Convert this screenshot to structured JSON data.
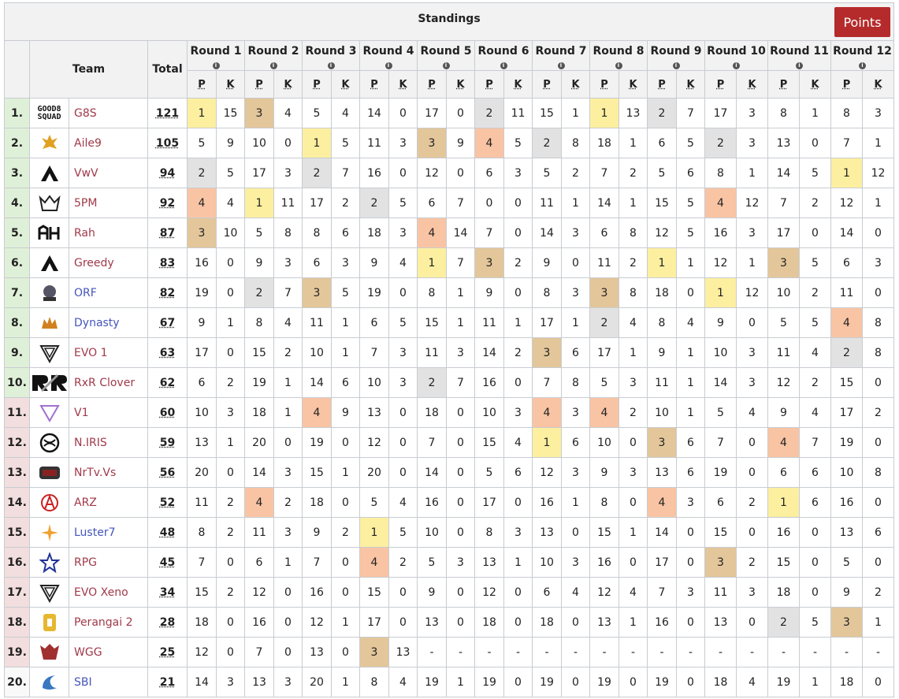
{
  "title": "Standings",
  "points_button": "Points",
  "header": {
    "team": "Team",
    "total": "Total",
    "p": "P",
    "k": "K",
    "info_glyph": "i"
  },
  "rounds": [
    "Round 1",
    "Round 2",
    "Round 3",
    "Round 4",
    "Round 5",
    "Round 6",
    "Round 7",
    "Round 8",
    "Round 9",
    "Round 10",
    "Round 11",
    "Round 12"
  ],
  "colors": {
    "gold": "#fcefa0",
    "silver": "#e2e2e2",
    "bronze": "#e3c69a",
    "fourth": "#f9c4a4",
    "top_rank": "#dff0d8",
    "bottom_rank": "#f2dede",
    "points_button": "#b52b2b"
  },
  "rows": [
    {
      "rank": "1.",
      "team": "G8S",
      "logo": "good8-squad-logo",
      "logo_text": "GOOD8 SQUAD",
      "link": "red",
      "total": "121",
      "tier": "top",
      "r": [
        [
          "1",
          "15",
          "g1"
        ],
        [
          "3",
          "4",
          "g3"
        ],
        [
          "5",
          "4",
          ""
        ],
        [
          "14",
          "0",
          ""
        ],
        [
          "17",
          "0",
          ""
        ],
        [
          "2",
          "11",
          "g2"
        ],
        [
          "15",
          "1",
          ""
        ],
        [
          "1",
          "13",
          "g1"
        ],
        [
          "2",
          "7",
          "g2"
        ],
        [
          "17",
          "3",
          ""
        ],
        [
          "8",
          "1",
          ""
        ],
        [
          "8",
          "3",
          ""
        ]
      ]
    },
    {
      "rank": "2.",
      "team": "Aile9",
      "logo": "aile9-logo",
      "link": "red",
      "total": "105",
      "tier": "top",
      "r": [
        [
          "5",
          "9",
          ""
        ],
        [
          "10",
          "0",
          ""
        ],
        [
          "1",
          "5",
          "g1"
        ],
        [
          "11",
          "3",
          ""
        ],
        [
          "3",
          "9",
          "g3"
        ],
        [
          "4",
          "5",
          "gp"
        ],
        [
          "2",
          "8",
          "g2"
        ],
        [
          "18",
          "1",
          ""
        ],
        [
          "6",
          "5",
          ""
        ],
        [
          "2",
          "3",
          "g2"
        ],
        [
          "13",
          "0",
          ""
        ],
        [
          "7",
          "1",
          ""
        ]
      ]
    },
    {
      "rank": "3.",
      "team": "VwV",
      "logo": "vwv-logo",
      "link": "red",
      "total": "94",
      "tier": "top",
      "r": [
        [
          "2",
          "5",
          "g2"
        ],
        [
          "17",
          "3",
          ""
        ],
        [
          "2",
          "7",
          "g2"
        ],
        [
          "16",
          "0",
          ""
        ],
        [
          "12",
          "0",
          ""
        ],
        [
          "6",
          "3",
          ""
        ],
        [
          "5",
          "2",
          ""
        ],
        [
          "7",
          "2",
          ""
        ],
        [
          "5",
          "6",
          ""
        ],
        [
          "8",
          "1",
          ""
        ],
        [
          "14",
          "5",
          ""
        ],
        [
          "1",
          "12",
          "g1"
        ]
      ]
    },
    {
      "rank": "4.",
      "team": "5PM",
      "logo": "5pm-logo",
      "link": "red",
      "total": "92",
      "tier": "top",
      "r": [
        [
          "4",
          "4",
          "gp"
        ],
        [
          "1",
          "11",
          "g1"
        ],
        [
          "17",
          "2",
          ""
        ],
        [
          "2",
          "5",
          "g2"
        ],
        [
          "6",
          "7",
          ""
        ],
        [
          "0",
          "0",
          ""
        ],
        [
          "11",
          "1",
          ""
        ],
        [
          "14",
          "1",
          ""
        ],
        [
          "15",
          "5",
          ""
        ],
        [
          "4",
          "12",
          "gp"
        ],
        [
          "7",
          "2",
          ""
        ],
        [
          "12",
          "1",
          ""
        ]
      ]
    },
    {
      "rank": "5.",
      "team": "Rah",
      "logo": "rah-logo",
      "link": "red",
      "total": "87",
      "tier": "top",
      "r": [
        [
          "3",
          "10",
          "g3"
        ],
        [
          "5",
          "8",
          ""
        ],
        [
          "8",
          "6",
          ""
        ],
        [
          "18",
          "3",
          ""
        ],
        [
          "4",
          "14",
          "gp"
        ],
        [
          "7",
          "0",
          ""
        ],
        [
          "14",
          "3",
          ""
        ],
        [
          "6",
          "8",
          ""
        ],
        [
          "12",
          "5",
          ""
        ],
        [
          "16",
          "3",
          ""
        ],
        [
          "17",
          "0",
          ""
        ],
        [
          "14",
          "0",
          ""
        ]
      ]
    },
    {
      "rank": "6.",
      "team": "Greedy",
      "logo": "greedy-logo",
      "link": "red",
      "total": "83",
      "tier": "top",
      "r": [
        [
          "16",
          "0",
          ""
        ],
        [
          "9",
          "3",
          ""
        ],
        [
          "6",
          "3",
          ""
        ],
        [
          "9",
          "4",
          ""
        ],
        [
          "1",
          "7",
          "g1"
        ],
        [
          "3",
          "2",
          "g3"
        ],
        [
          "9",
          "0",
          ""
        ],
        [
          "11",
          "2",
          ""
        ],
        [
          "1",
          "1",
          "g1"
        ],
        [
          "12",
          "1",
          ""
        ],
        [
          "3",
          "5",
          "g3"
        ],
        [
          "6",
          "3",
          ""
        ]
      ]
    },
    {
      "rank": "7.",
      "team": "ORF",
      "logo": "orf-logo",
      "link": "blue",
      "total": "82",
      "tier": "top",
      "r": [
        [
          "19",
          "0",
          ""
        ],
        [
          "2",
          "7",
          "g2"
        ],
        [
          "3",
          "5",
          "g3"
        ],
        [
          "19",
          "0",
          ""
        ],
        [
          "8",
          "1",
          ""
        ],
        [
          "9",
          "0",
          ""
        ],
        [
          "8",
          "3",
          ""
        ],
        [
          "3",
          "8",
          "g3"
        ],
        [
          "18",
          "0",
          ""
        ],
        [
          "1",
          "12",
          "g1"
        ],
        [
          "10",
          "2",
          ""
        ],
        [
          "11",
          "0",
          ""
        ]
      ]
    },
    {
      "rank": "8.",
      "team": "Dynasty",
      "logo": "dynasty-logo",
      "link": "blue",
      "total": "67",
      "tier": "top",
      "r": [
        [
          "9",
          "1",
          ""
        ],
        [
          "8",
          "4",
          ""
        ],
        [
          "11",
          "1",
          ""
        ],
        [
          "6",
          "5",
          ""
        ],
        [
          "15",
          "1",
          ""
        ],
        [
          "11",
          "1",
          ""
        ],
        [
          "17",
          "1",
          ""
        ],
        [
          "2",
          "4",
          "g2"
        ],
        [
          "8",
          "4",
          ""
        ],
        [
          "9",
          "0",
          ""
        ],
        [
          "5",
          "5",
          ""
        ],
        [
          "4",
          "8",
          "gp"
        ]
      ]
    },
    {
      "rank": "9.",
      "team": "EVO 1",
      "logo": "evo-logo",
      "link": "red",
      "total": "63",
      "tier": "top",
      "r": [
        [
          "17",
          "0",
          ""
        ],
        [
          "15",
          "2",
          ""
        ],
        [
          "10",
          "1",
          ""
        ],
        [
          "7",
          "3",
          ""
        ],
        [
          "11",
          "3",
          ""
        ],
        [
          "14",
          "2",
          ""
        ],
        [
          "3",
          "6",
          "g3"
        ],
        [
          "17",
          "1",
          ""
        ],
        [
          "9",
          "1",
          ""
        ],
        [
          "10",
          "3",
          ""
        ],
        [
          "11",
          "4",
          ""
        ],
        [
          "2",
          "8",
          "g2"
        ]
      ]
    },
    {
      "rank": "10.",
      "team": "RxR Clover",
      "logo": "rxr-logo",
      "link": "red",
      "total": "62",
      "tier": "top",
      "r": [
        [
          "6",
          "2",
          ""
        ],
        [
          "19",
          "1",
          ""
        ],
        [
          "14",
          "6",
          ""
        ],
        [
          "10",
          "3",
          ""
        ],
        [
          "2",
          "7",
          "g2"
        ],
        [
          "16",
          "0",
          ""
        ],
        [
          "7",
          "8",
          ""
        ],
        [
          "5",
          "3",
          ""
        ],
        [
          "11",
          "1",
          ""
        ],
        [
          "14",
          "3",
          ""
        ],
        [
          "12",
          "2",
          ""
        ],
        [
          "15",
          "0",
          ""
        ]
      ]
    },
    {
      "rank": "11.",
      "team": "V1",
      "logo": "v1-logo",
      "link": "red",
      "total": "60",
      "tier": "bot",
      "r": [
        [
          "10",
          "3",
          ""
        ],
        [
          "18",
          "1",
          ""
        ],
        [
          "4",
          "9",
          "gp"
        ],
        [
          "13",
          "0",
          ""
        ],
        [
          "18",
          "0",
          ""
        ],
        [
          "10",
          "3",
          ""
        ],
        [
          "4",
          "3",
          "gp"
        ],
        [
          "4",
          "2",
          "gp"
        ],
        [
          "10",
          "1",
          ""
        ],
        [
          "5",
          "4",
          ""
        ],
        [
          "9",
          "4",
          ""
        ],
        [
          "17",
          "2",
          ""
        ]
      ]
    },
    {
      "rank": "12.",
      "team": "N.IRIS",
      "logo": "niris-logo",
      "link": "red",
      "total": "59",
      "tier": "bot",
      "r": [
        [
          "13",
          "1",
          ""
        ],
        [
          "20",
          "0",
          ""
        ],
        [
          "19",
          "0",
          ""
        ],
        [
          "12",
          "0",
          ""
        ],
        [
          "7",
          "0",
          ""
        ],
        [
          "15",
          "4",
          ""
        ],
        [
          "1",
          "6",
          "g1"
        ],
        [
          "10",
          "0",
          ""
        ],
        [
          "3",
          "6",
          "g3"
        ],
        [
          "7",
          "0",
          ""
        ],
        [
          "4",
          "7",
          "gp"
        ],
        [
          "19",
          "0",
          ""
        ]
      ]
    },
    {
      "rank": "13.",
      "team": "NrTv.Vs",
      "logo": "nrtv-logo",
      "link": "red",
      "total": "56",
      "tier": "bot",
      "r": [
        [
          "20",
          "0",
          ""
        ],
        [
          "14",
          "3",
          ""
        ],
        [
          "15",
          "1",
          ""
        ],
        [
          "20",
          "0",
          ""
        ],
        [
          "14",
          "0",
          ""
        ],
        [
          "5",
          "6",
          ""
        ],
        [
          "12",
          "3",
          ""
        ],
        [
          "9",
          "3",
          ""
        ],
        [
          "13",
          "6",
          ""
        ],
        [
          "19",
          "0",
          ""
        ],
        [
          "6",
          "6",
          ""
        ],
        [
          "10",
          "8",
          ""
        ]
      ]
    },
    {
      "rank": "14.",
      "team": "ARZ",
      "logo": "arz-logo",
      "link": "red",
      "total": "52",
      "tier": "bot",
      "r": [
        [
          "11",
          "2",
          ""
        ],
        [
          "4",
          "2",
          "gp"
        ],
        [
          "18",
          "0",
          ""
        ],
        [
          "5",
          "4",
          ""
        ],
        [
          "16",
          "0",
          ""
        ],
        [
          "17",
          "0",
          ""
        ],
        [
          "16",
          "1",
          ""
        ],
        [
          "8",
          "0",
          ""
        ],
        [
          "4",
          "3",
          "gp"
        ],
        [
          "6",
          "2",
          ""
        ],
        [
          "1",
          "6",
          "g1"
        ],
        [
          "16",
          "0",
          ""
        ]
      ]
    },
    {
      "rank": "15.",
      "team": "Luster7",
      "logo": "luster7-logo",
      "link": "blue",
      "total": "48",
      "tier": "bot",
      "r": [
        [
          "8",
          "2",
          ""
        ],
        [
          "11",
          "3",
          ""
        ],
        [
          "9",
          "2",
          ""
        ],
        [
          "1",
          "5",
          "g1"
        ],
        [
          "10",
          "0",
          ""
        ],
        [
          "8",
          "3",
          ""
        ],
        [
          "13",
          "0",
          ""
        ],
        [
          "15",
          "1",
          ""
        ],
        [
          "14",
          "0",
          ""
        ],
        [
          "15",
          "0",
          ""
        ],
        [
          "16",
          "0",
          ""
        ],
        [
          "13",
          "6",
          ""
        ]
      ]
    },
    {
      "rank": "16.",
      "team": "RPG",
      "logo": "rpg-logo",
      "link": "red",
      "total": "45",
      "tier": "bot",
      "r": [
        [
          "7",
          "0",
          ""
        ],
        [
          "6",
          "1",
          ""
        ],
        [
          "7",
          "0",
          ""
        ],
        [
          "4",
          "2",
          "gp"
        ],
        [
          "5",
          "3",
          ""
        ],
        [
          "13",
          "1",
          ""
        ],
        [
          "10",
          "3",
          ""
        ],
        [
          "16",
          "0",
          ""
        ],
        [
          "17",
          "0",
          ""
        ],
        [
          "3",
          "2",
          "g3"
        ],
        [
          "15",
          "0",
          ""
        ],
        [
          "5",
          "0",
          ""
        ]
      ]
    },
    {
      "rank": "17.",
      "team": "EVO Xeno",
      "logo": "evo-logo",
      "link": "red",
      "total": "34",
      "tier": "bot",
      "r": [
        [
          "15",
          "2",
          ""
        ],
        [
          "12",
          "0",
          ""
        ],
        [
          "16",
          "0",
          ""
        ],
        [
          "15",
          "0",
          ""
        ],
        [
          "9",
          "0",
          ""
        ],
        [
          "12",
          "0",
          ""
        ],
        [
          "6",
          "4",
          ""
        ],
        [
          "12",
          "4",
          ""
        ],
        [
          "7",
          "3",
          ""
        ],
        [
          "11",
          "3",
          ""
        ],
        [
          "18",
          "0",
          ""
        ],
        [
          "9",
          "2",
          ""
        ]
      ]
    },
    {
      "rank": "18.",
      "team": "Perangai 2",
      "logo": "perangai-logo",
      "link": "red",
      "total": "28",
      "tier": "bot",
      "r": [
        [
          "18",
          "0",
          ""
        ],
        [
          "16",
          "0",
          ""
        ],
        [
          "12",
          "1",
          ""
        ],
        [
          "17",
          "0",
          ""
        ],
        [
          "13",
          "0",
          ""
        ],
        [
          "18",
          "0",
          ""
        ],
        [
          "18",
          "0",
          ""
        ],
        [
          "13",
          "1",
          ""
        ],
        [
          "16",
          "0",
          ""
        ],
        [
          "13",
          "0",
          ""
        ],
        [
          "2",
          "5",
          "g2"
        ],
        [
          "3",
          "1",
          "g3"
        ]
      ]
    },
    {
      "rank": "19.",
      "team": "WGG",
      "logo": "wgg-logo",
      "link": "red",
      "total": "25",
      "tier": "bot",
      "r": [
        [
          "12",
          "0",
          ""
        ],
        [
          "7",
          "0",
          ""
        ],
        [
          "13",
          "0",
          ""
        ],
        [
          "3",
          "13",
          "g3"
        ],
        [
          "-",
          "-",
          ""
        ],
        [
          "-",
          "-",
          ""
        ],
        [
          "-",
          "-",
          ""
        ],
        [
          "-",
          "-",
          ""
        ],
        [
          "-",
          "-",
          ""
        ],
        [
          "-",
          "-",
          ""
        ],
        [
          "-",
          "-",
          ""
        ],
        [
          "-",
          "-",
          ""
        ]
      ]
    },
    {
      "rank": "20.",
      "team": "SBI",
      "logo": "sbi-logo",
      "link": "blue",
      "total": "21",
      "tier": "mid",
      "r": [
        [
          "14",
          "3",
          ""
        ],
        [
          "13",
          "3",
          ""
        ],
        [
          "20",
          "1",
          ""
        ],
        [
          "8",
          "4",
          ""
        ],
        [
          "19",
          "1",
          ""
        ],
        [
          "19",
          "0",
          ""
        ],
        [
          "19",
          "0",
          ""
        ],
        [
          "19",
          "0",
          ""
        ],
        [
          "19",
          "0",
          ""
        ],
        [
          "18",
          "4",
          ""
        ],
        [
          "19",
          "1",
          ""
        ],
        [
          "18",
          "0",
          ""
        ]
      ]
    }
  ]
}
